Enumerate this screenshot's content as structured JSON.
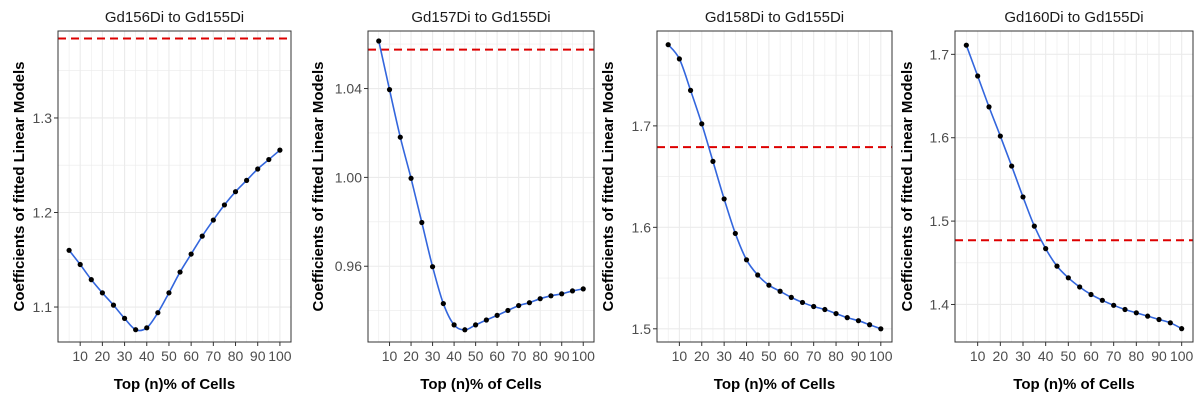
{
  "colors": {
    "point": "#000000",
    "curve": "#3366dd",
    "reference_line": "#dd0000",
    "grid": "#ebebeb",
    "panel_border": "#333333"
  },
  "chart_data": [
    {
      "type": "scatter",
      "title": "Gd156Di to Gd155Di",
      "xlabel": "Top (n)% of Cells",
      "ylabel": "Coefficients of fitted Linear Models",
      "xlim": [
        0,
        105
      ],
      "ylim": [
        1.063,
        1.392
      ],
      "xticks": [
        10,
        20,
        30,
        40,
        50,
        60,
        70,
        80,
        90,
        100
      ],
      "yticks": [
        1.1,
        1.2,
        1.3
      ],
      "ytick_labels": [
        "1.1",
        "1.2",
        "1.3"
      ],
      "reference_line": 1.384,
      "grid": true,
      "smooth_line": true,
      "x": [
        5,
        10,
        15,
        20,
        25,
        30,
        35,
        40,
        45,
        50,
        55,
        60,
        65,
        70,
        75,
        80,
        85,
        90,
        95,
        100
      ],
      "y": [
        1.16,
        1.145,
        1.129,
        1.115,
        1.102,
        1.088,
        1.076,
        1.078,
        1.094,
        1.115,
        1.137,
        1.156,
        1.175,
        1.192,
        1.208,
        1.222,
        1.234,
        1.246,
        1.256,
        1.266
      ]
    },
    {
      "type": "scatter",
      "title": "Gd157Di to Gd155Di",
      "xlabel": "Top (n)% of Cells",
      "ylabel": "Coefficients of fitted Linear Models",
      "xlim": [
        0,
        105
      ],
      "ylim": [
        0.9259,
        1.0659
      ],
      "xticks": [
        10,
        20,
        30,
        40,
        50,
        60,
        70,
        80,
        90,
        100
      ],
      "yticks": [
        0.96,
        1.0,
        1.04
      ],
      "ytick_labels": [
        "0.96",
        "1.00",
        "1.04"
      ],
      "reference_line": 1.0575,
      "grid": true,
      "smooth_line": true,
      "x": [
        5,
        10,
        15,
        20,
        25,
        30,
        35,
        40,
        45,
        50,
        55,
        60,
        65,
        70,
        75,
        80,
        85,
        90,
        95,
        100
      ],
      "y": [
        1.0614,
        1.0395,
        1.0181,
        0.9996,
        0.9797,
        0.9598,
        0.9432,
        0.9336,
        0.9314,
        0.9336,
        0.9358,
        0.9379,
        0.9401,
        0.9423,
        0.9436,
        0.9454,
        0.9467,
        0.9476,
        0.9489,
        0.9498
      ]
    },
    {
      "type": "scatter",
      "title": "Gd158Di to Gd155Di",
      "xlabel": "Top (n)% of Cells",
      "ylabel": "Coefficients of fitted Linear Models",
      "xlim": [
        0,
        105
      ],
      "ylim": [
        1.487,
        1.7935
      ],
      "xticks": [
        10,
        20,
        30,
        40,
        50,
        60,
        70,
        80,
        90,
        100
      ],
      "yticks": [
        1.5,
        1.6,
        1.7
      ],
      "ytick_labels": [
        "1.5",
        "1.6",
        "1.7"
      ],
      "reference_line": 1.679,
      "grid": true,
      "smooth_line": true,
      "x": [
        5,
        10,
        15,
        20,
        25,
        30,
        35,
        40,
        45,
        50,
        55,
        60,
        65,
        70,
        75,
        80,
        85,
        90,
        95,
        100
      ],
      "y": [
        1.78,
        1.766,
        1.735,
        1.702,
        1.665,
        1.628,
        1.594,
        1.568,
        1.553,
        1.543,
        1.537,
        1.531,
        1.526,
        1.522,
        1.519,
        1.515,
        1.511,
        1.508,
        1.504,
        1.5
      ]
    },
    {
      "type": "scatter",
      "title": "Gd160Di to Gd155Di",
      "xlabel": "Top (n)% of Cells",
      "ylabel": "Coefficients of fitted Linear Models",
      "xlim": [
        0,
        105
      ],
      "ylim": [
        1.355,
        1.728
      ],
      "xticks": [
        10,
        20,
        30,
        40,
        50,
        60,
        70,
        80,
        90,
        100
      ],
      "yticks": [
        1.4,
        1.5,
        1.6,
        1.7
      ],
      "ytick_labels": [
        "1.4",
        "1.5",
        "1.6",
        "1.7"
      ],
      "reference_line": 1.477,
      "grid": true,
      "smooth_line": true,
      "x": [
        5,
        10,
        15,
        20,
        25,
        30,
        35,
        40,
        45,
        50,
        55,
        60,
        65,
        70,
        75,
        80,
        85,
        90,
        95,
        100
      ],
      "y": [
        1.711,
        1.674,
        1.637,
        1.602,
        1.566,
        1.529,
        1.494,
        1.467,
        1.446,
        1.432,
        1.421,
        1.412,
        1.405,
        1.399,
        1.394,
        1.39,
        1.386,
        1.382,
        1.378,
        1.371
      ]
    }
  ]
}
